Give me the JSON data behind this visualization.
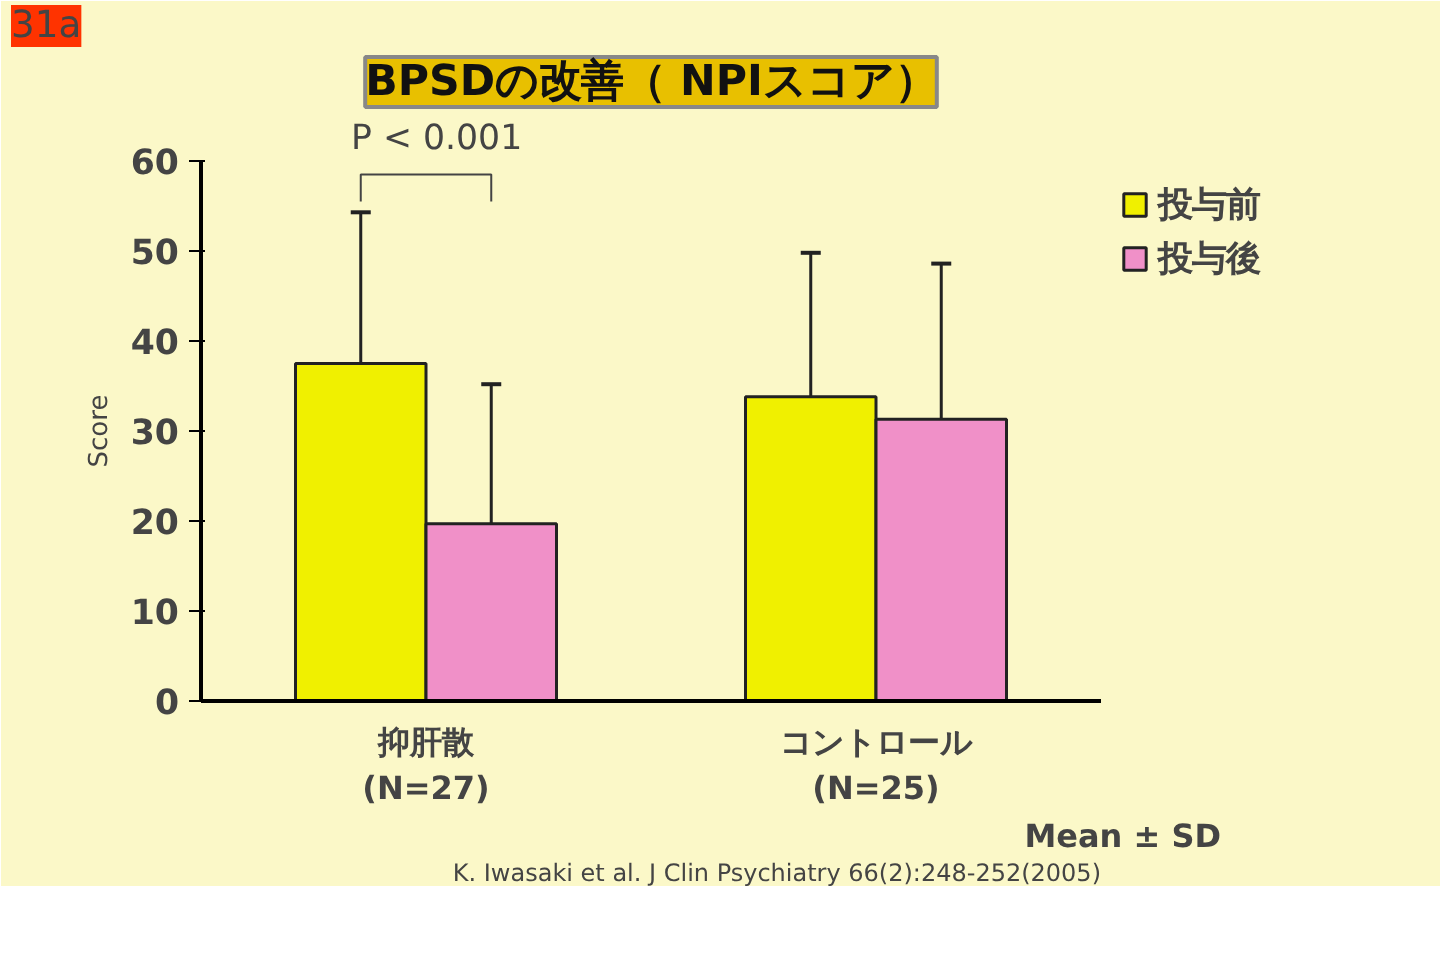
{
  "chart_data": {
    "type": "bar",
    "title": "BPSDの改善（ NPIスコア）",
    "ylabel": "Score",
    "categories": [
      "抑肝散\n(N=27)",
      "コントロール\n(N=25)"
    ],
    "series": [
      {
        "name": "投与前",
        "color": "#f0f000",
        "values": [
          37.5,
          33.8
        ],
        "errors": [
          [
            37.5,
            54.3
          ],
          [
            33.8,
            49.8
          ]
        ]
      },
      {
        "name": "投与後",
        "color": "#f090c8",
        "values": [
          19.7,
          31.3
        ],
        "errors": [
          [
            19.7,
            35.2
          ],
          [
            31.3,
            48.6
          ]
        ]
      }
    ],
    "ylim": [
      0,
      60
    ],
    "yticks": [
      0,
      10,
      20,
      30,
      40,
      50,
      60
    ],
    "grid": false,
    "legend": "top right",
    "annotations": [
      "31a",
      "P < 0.001",
      "Mean ± SD",
      "K. Iwasaki et al. J Clin Psychiatry 66(2):248-252(2005)"
    ]
  }
}
